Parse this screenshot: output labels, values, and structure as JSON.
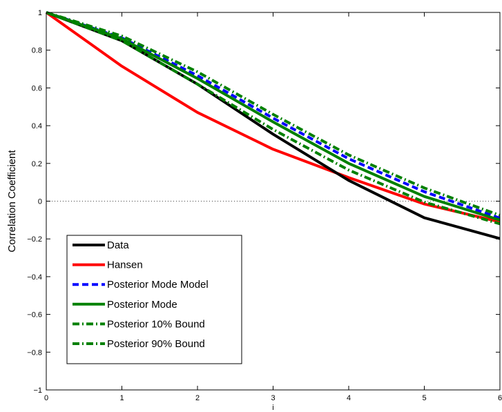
{
  "chart_data": {
    "type": "line",
    "xlabel": "i",
    "ylabel": "Correlation Coefficient",
    "xlim": [
      0,
      6
    ],
    "ylim": [
      -1,
      1
    ],
    "x_ticks": [
      "0",
      "1",
      "2",
      "3",
      "4",
      "5",
      "6"
    ],
    "y_ticks": [
      "−1",
      "−0.8",
      "−0.6",
      "−0.4",
      "−0.2",
      "0",
      "0.2",
      "0.4",
      "0.6",
      "0.8",
      "1"
    ],
    "reference_line": {
      "y": 0,
      "style": "dotted"
    },
    "legend_position": "lower-left",
    "x": [
      0,
      1,
      2,
      3,
      4,
      5,
      6
    ],
    "series": [
      {
        "name": "Data",
        "color": "#000000",
        "style": "solid",
        "values": [
          1.0,
          0.85,
          0.62,
          0.355,
          0.11,
          -0.088,
          -0.198
        ]
      },
      {
        "name": "Hansen",
        "color": "#ff0000",
        "style": "solid",
        "values": [
          1.0,
          0.715,
          0.47,
          0.275,
          0.125,
          -0.015,
          -0.11
        ]
      },
      {
        "name": "Posterior Mode Model",
        "color": "#0000ff",
        "style": "dashed",
        "values": [
          1.0,
          0.865,
          0.665,
          0.44,
          0.225,
          0.05,
          -0.09
        ]
      },
      {
        "name": "Posterior Mode",
        "color": "#008000",
        "style": "solid",
        "values": [
          1.0,
          0.86,
          0.65,
          0.42,
          0.2,
          0.025,
          -0.1
        ]
      },
      {
        "name": "Posterior 10% Bound",
        "color": "#008000",
        "style": "dashdot",
        "values": [
          1.0,
          0.85,
          0.62,
          0.38,
          0.165,
          -0.005,
          -0.12
        ]
      },
      {
        "name": "Posterior 90% Bound",
        "color": "#008000",
        "style": "dashdot",
        "values": [
          1.0,
          0.875,
          0.685,
          0.46,
          0.245,
          0.07,
          -0.075
        ]
      }
    ]
  }
}
